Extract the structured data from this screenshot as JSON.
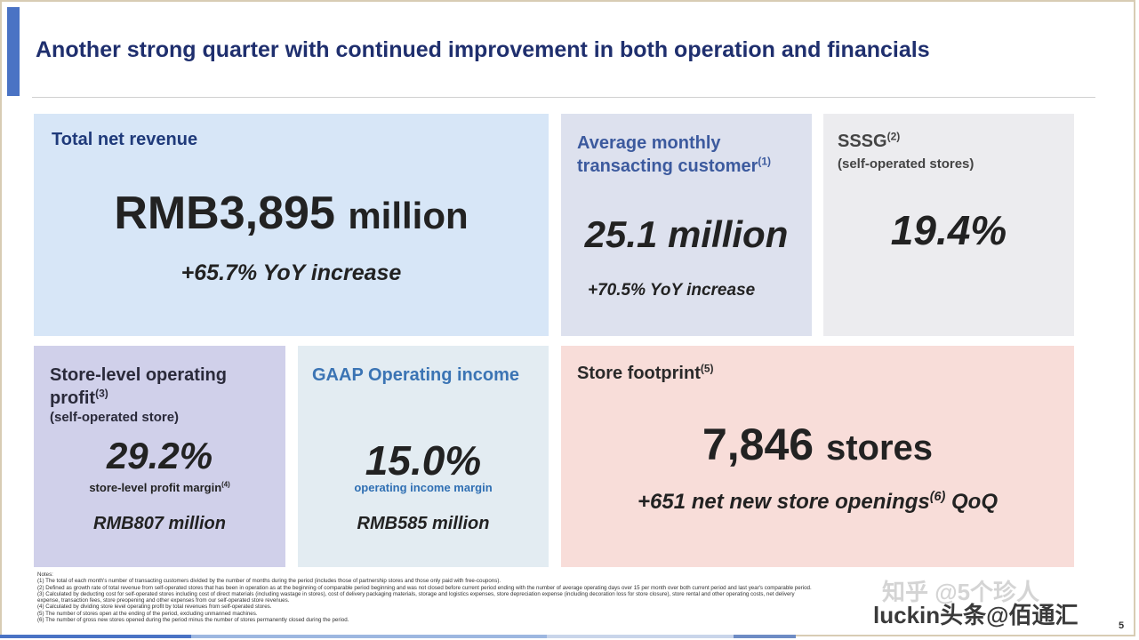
{
  "title": "Another strong quarter with continued improvement in both operation and financials",
  "cards": {
    "revenue": {
      "label": "Total net revenue",
      "value_main": "RMB3,895",
      "value_unit": "million",
      "yoy": "+65.7% YoY increase"
    },
    "mtc": {
      "label": "Average monthly transacting customer",
      "note_ref": "(1)",
      "value": "25.1 million",
      "yoy": "+70.5% YoY increase"
    },
    "sssg": {
      "label": "SSSG",
      "note_ref": "(2)",
      "sub": "(self-operated stores)",
      "value": "19.4%"
    },
    "store_level": {
      "label": "Store-level operating profit",
      "note_ref": "(3)",
      "sub": "(self-operated store)",
      "value": "29.2%",
      "margin_label": "store-level profit margin",
      "margin_ref": "(4)",
      "rmb": "RMB807 million"
    },
    "gaap": {
      "label": "GAAP Operating income",
      "value": "15.0%",
      "margin_label": "operating income margin",
      "rmb": "RMB585 million"
    },
    "footprint": {
      "label": "Store footprint",
      "note_ref": "(5)",
      "value_main": "7,846",
      "value_unit": "stores",
      "sub_main": "+651 net new store openings",
      "sub_ref": "(6)",
      "sub_tail": "QoQ"
    }
  },
  "notes": [
    "Notes:",
    "(1) The total of each month's number of transacting customers divided by the number of months during the period (includes those of partnership stores and those only paid with free-coupons).",
    "(2) Defined as growth rate of total revenue from self-operated stores that has been in operation as at the beginning of comparable period beginning and was not closed before current period ending with the number of average operating days over 15 per month over both current period and last year's comparable period.",
    "(3) Calculated by deducting cost for self-operated stores including cost of direct materials (including wastage in stores), cost of delivery packaging materials, storage and logistics expenses, store depreciation expense (including decoration loss for store closure), store rental and other operating costs, net delivery",
    "expense, transaction fees, store preopening and other expenses from our self-operated store revenues.",
    "(4) Calculated by dividing store level operating profit by total revenues from self-operated stores.",
    "(5) The number of stores open at the ending of the period, excluding unmanned machines.",
    "(6) The number of gross new stores opened during the period minus the number of stores permanently closed during the period."
  ],
  "watermark": {
    "top": "知乎 @5个珍人",
    "bottom": "luckin头条@佰通汇"
  },
  "page_number": "5",
  "colors": {
    "title": "#1f2f6e",
    "accent": "#4a73c4",
    "revenue_bg": "#d7e6f7",
    "footprint_bg": "#f8ddd9"
  }
}
